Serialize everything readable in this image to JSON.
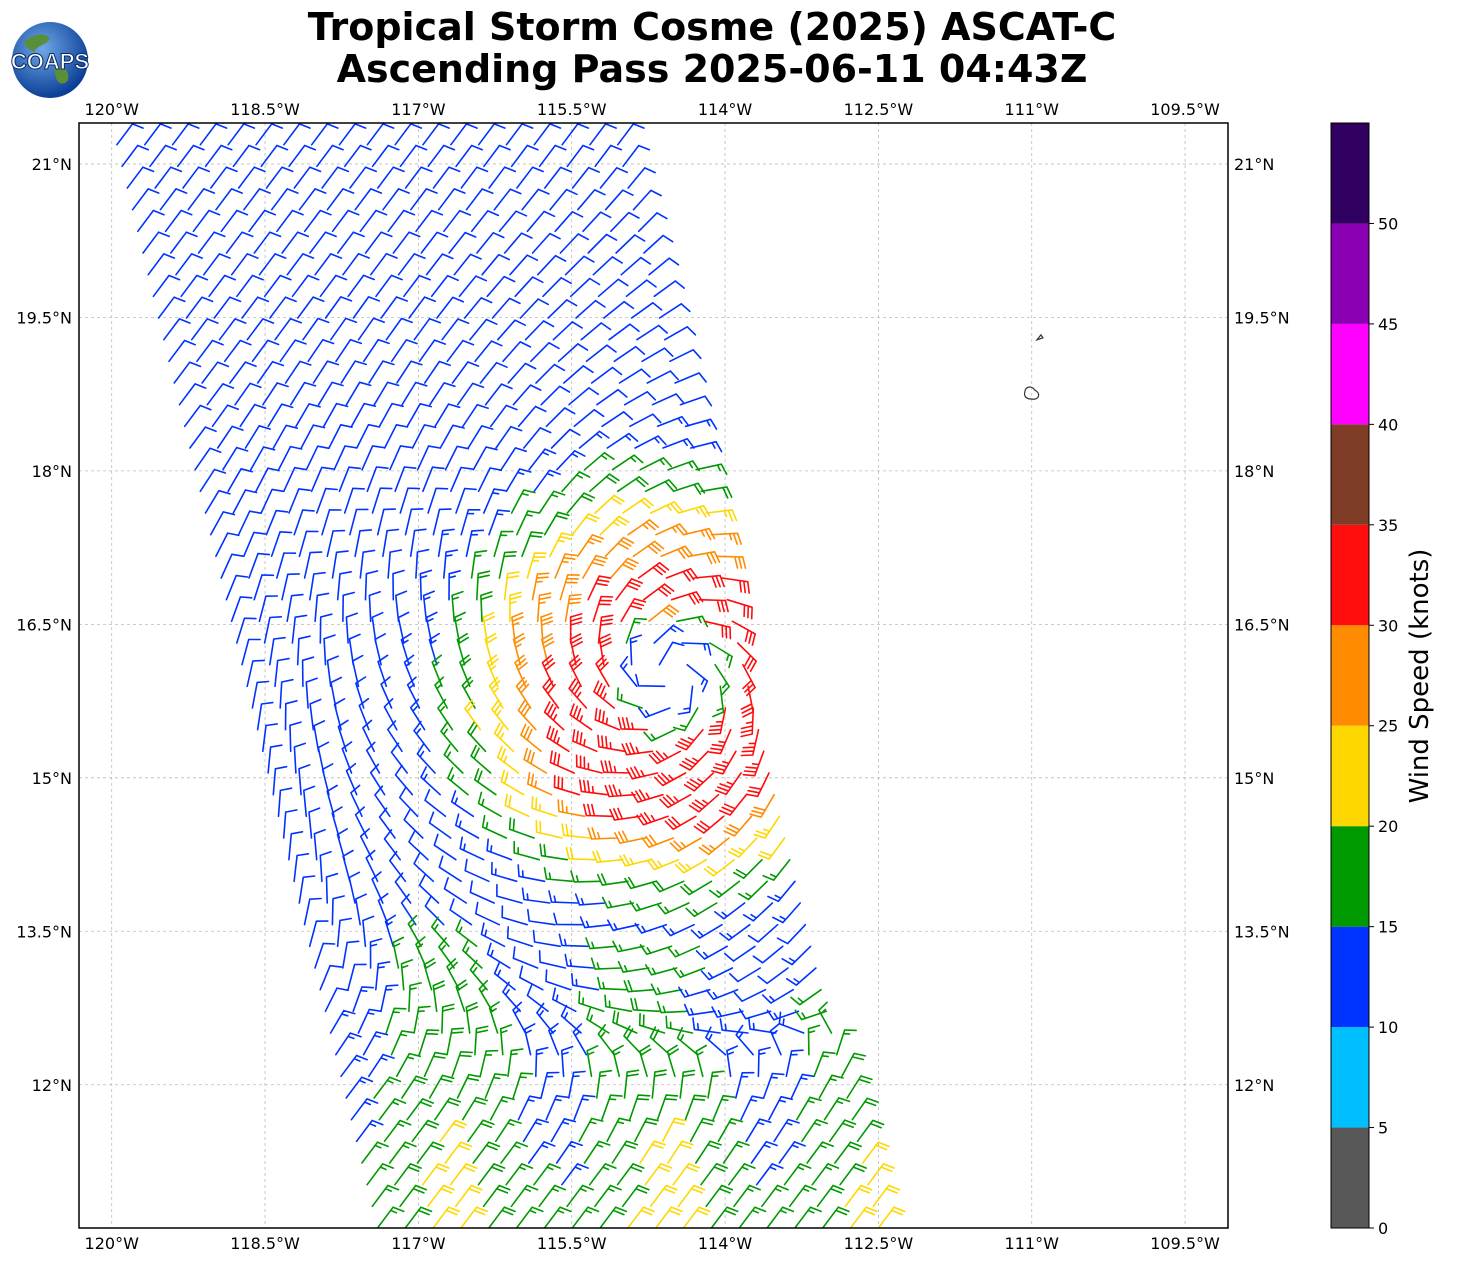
{
  "page": {
    "title_line1": "Tropical Storm Cosme (2025) ASCAT-C",
    "title_line2": "Ascending Pass 2025-06-11 04:43Z",
    "logo_text": "COAPS"
  },
  "chart_data": {
    "type": "wind-barb-map",
    "title": "Tropical Storm Cosme (2025) ASCAT-C Ascending Pass 2025-06-11 04:43Z",
    "x_axis": {
      "label": "",
      "range_deg": [
        -120.32,
        -109.08
      ],
      "tick_values": [
        -120,
        -118.5,
        -117,
        -115.5,
        -114,
        -112.5,
        -111,
        -109.5
      ],
      "tick_labels": [
        "120°W",
        "118.5°W",
        "117°W",
        "115.5°W",
        "114°W",
        "112.5°W",
        "111°W",
        "109.5°W"
      ]
    },
    "y_axis": {
      "label": "",
      "range_deg": [
        10.6,
        21.4
      ],
      "tick_values": [
        21,
        19.5,
        18,
        16.5,
        15,
        13.5,
        12
      ],
      "tick_labels": [
        "21°N",
        "19.5°N",
        "18°N",
        "16.5°N",
        "15°N",
        "13.5°N",
        "12°N"
      ]
    },
    "grid": true,
    "storm_center": {
      "lon": -114.55,
      "lat": 16.0
    },
    "swath": {
      "north_edge_lat": 21.4,
      "south_edge_lat": 10.6,
      "east_edge_lon_north": -115.1,
      "east_edge_lon_south": -112.5,
      "width_deg": 4.9
    },
    "wind_field_samples_kt": [
      {
        "region": "far west / north of swath",
        "speed": 12
      },
      {
        "region": "west edge near 15.5N",
        "speed": 7
      },
      {
        "region": "north-east edge near 21N",
        "speed": 8
      },
      {
        "region": "south of center 14.5N 115.5W",
        "speed": 27
      },
      {
        "region": "just south of center 15.3N 114.5W",
        "speed": 31
      },
      {
        "region": "east of center 16N 114W",
        "speed": 22
      },
      {
        "region": "south swath 12N",
        "speed": 17
      }
    ],
    "max_wind_kt": 32,
    "colorbar": {
      "label": "Wind Speed (knots)",
      "tick_values": [
        0,
        5,
        10,
        15,
        20,
        25,
        30,
        35,
        40,
        45,
        50
      ],
      "tick_labels": [
        "0",
        "5",
        "10",
        "15",
        "20",
        "25",
        "30",
        "35",
        "40",
        "45",
        "50"
      ],
      "bins": [
        {
          "min": 0,
          "max": 5,
          "color": "#585858"
        },
        {
          "min": 5,
          "max": 10,
          "color": "#00bfff"
        },
        {
          "min": 10,
          "max": 15,
          "color": "#0033ff"
        },
        {
          "min": 15,
          "max": 20,
          "color": "#009900"
        },
        {
          "min": 20,
          "max": 25,
          "color": "#ffd700"
        },
        {
          "min": 25,
          "max": 30,
          "color": "#ff8c00"
        },
        {
          "min": 30,
          "max": 35,
          "color": "#ff0d0d"
        },
        {
          "min": 35,
          "max": 40,
          "color": "#7f3c26"
        },
        {
          "min": 40,
          "max": 45,
          "color": "#ff00ff"
        },
        {
          "min": 45,
          "max": 50,
          "color": "#8b00b2"
        },
        {
          "min": 50,
          "max": 55,
          "color": "#2f005f"
        }
      ]
    },
    "islands": [
      {
        "name": "",
        "lon": -111.0,
        "lat": 18.75
      },
      {
        "name": "",
        "lon": -110.92,
        "lat": 19.3
      }
    ]
  }
}
